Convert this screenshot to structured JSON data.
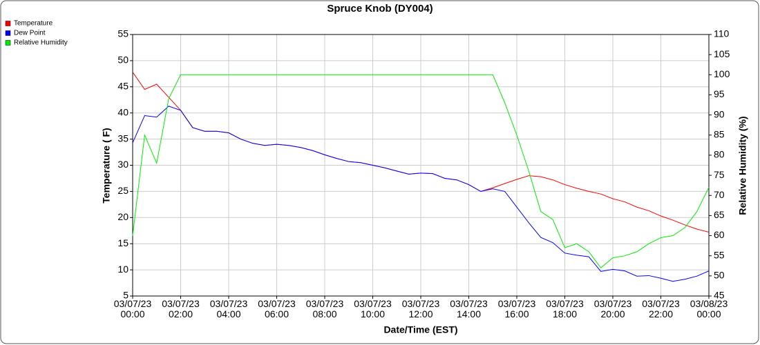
{
  "chart_data": {
    "type": "line",
    "title": "Spruce Knob (DY004)",
    "x_label": "Date/Time (EST)",
    "y_label": "Temperature ( F)",
    "y2_label": "Relative Humidity (%)",
    "x": [
      "03/07/23 00:00",
      "03/07/23 00:30",
      "03/07/23 01:00",
      "03/07/23 01:30",
      "03/07/23 02:00",
      "03/07/23 02:30",
      "03/07/23 03:00",
      "03/07/23 03:30",
      "03/07/23 04:00",
      "03/07/23 04:30",
      "03/07/23 05:00",
      "03/07/23 05:30",
      "03/07/23 06:00",
      "03/07/23 06:30",
      "03/07/23 07:00",
      "03/07/23 07:30",
      "03/07/23 08:00",
      "03/07/23 08:30",
      "03/07/23 09:00",
      "03/07/23 09:30",
      "03/07/23 10:00",
      "03/07/23 10:30",
      "03/07/23 11:00",
      "03/07/23 11:30",
      "03/07/23 12:00",
      "03/07/23 12:30",
      "03/07/23 13:00",
      "03/07/23 13:30",
      "03/07/23 14:00",
      "03/07/23 14:30",
      "03/07/23 15:00",
      "03/07/23 15:30",
      "03/07/23 16:00",
      "03/07/23 16:30",
      "03/07/23 17:00",
      "03/07/23 17:30",
      "03/07/23 18:00",
      "03/07/23 18:30",
      "03/07/23 19:00",
      "03/07/23 19:30",
      "03/07/23 20:00",
      "03/07/23 20:30",
      "03/07/23 21:00",
      "03/07/23 21:30",
      "03/07/23 22:00",
      "03/07/23 22:30",
      "03/07/23 23:00",
      "03/07/23 23:30",
      "03/08/23 00:00"
    ],
    "series": [
      {
        "name": "Temperature",
        "color": "#ff0000",
        "values": [
          47.8,
          44.5,
          45.5,
          43,
          40.5,
          37.2,
          36.5,
          36.5,
          36.2,
          35,
          34.2,
          33.8,
          34,
          33.8,
          33.4,
          32.8,
          32,
          31.3,
          30.7,
          30.5,
          30,
          29.5,
          28.9,
          28.3,
          28.5,
          28.4,
          27.5,
          27.2,
          26.3,
          25,
          25.7,
          26.5,
          27.3,
          28,
          27.8,
          27.2,
          26.3,
          25.6,
          25,
          24.5,
          23.6,
          23,
          22,
          21.3,
          20.3,
          19.5,
          18.6,
          17.8,
          17.2
        ]
      },
      {
        "name": "Dew Point",
        "color": "#0000ff",
        "values": [
          34.3,
          39.5,
          39.2,
          41.3,
          40.5,
          37.2,
          36.5,
          36.5,
          36.2,
          35,
          34.2,
          33.8,
          34,
          33.8,
          33.4,
          32.8,
          32,
          31.3,
          30.7,
          30.5,
          30,
          29.5,
          28.9,
          28.3,
          28.5,
          28.4,
          27.5,
          27.2,
          26.3,
          25,
          25.5,
          25,
          22,
          19,
          16.2,
          15.2,
          13.2,
          12.8,
          12.5,
          9.7,
          10.1,
          9.8,
          8.8,
          8.9,
          8.4,
          7.8,
          8.2,
          8.8,
          9.8
        ]
      },
      {
        "name": "Relative Humidity",
        "color": "#00ee00",
        "axis": "y2",
        "values": [
          60,
          85,
          78,
          94,
          100,
          100,
          100,
          100,
          100,
          100,
          100,
          100,
          100,
          100,
          100,
          100,
          100,
          100,
          100,
          100,
          100,
          100,
          100,
          100,
          100,
          100,
          100,
          100,
          100,
          100,
          100,
          93,
          85,
          76,
          66,
          64,
          57,
          58,
          56,
          52,
          54.5,
          55,
          56,
          58,
          59.5,
          60,
          62,
          66,
          72
        ]
      }
    ],
    "xlim": [
      "03/07/23 00:00",
      "03/08/23 00:00"
    ],
    "xticks": [
      "03/07/23 00:00",
      "03/07/23 02:00",
      "03/07/23 04:00",
      "03/07/23 06:00",
      "03/07/23 08:00",
      "03/07/23 10:00",
      "03/07/23 12:00",
      "03/07/23 14:00",
      "03/07/23 16:00",
      "03/07/23 18:00",
      "03/07/23 20:00",
      "03/07/23 22:00",
      "03/08/23 00:00"
    ],
    "ylim": [
      5,
      55
    ],
    "yticks": [
      5,
      10,
      15,
      20,
      25,
      30,
      35,
      40,
      45,
      50,
      55
    ],
    "y2lim": [
      45,
      110
    ],
    "y2ticks": [
      45,
      50,
      55,
      60,
      65,
      70,
      75,
      80,
      85,
      90,
      95,
      100,
      105,
      110
    ],
    "grid": true,
    "legend": "top-left"
  }
}
